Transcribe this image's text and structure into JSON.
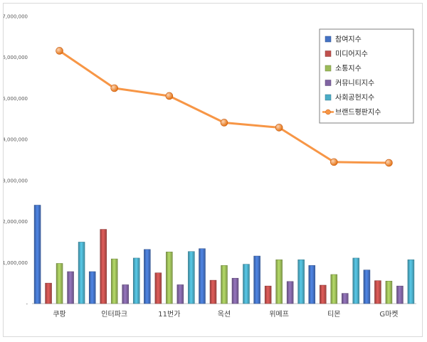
{
  "chart_data": {
    "type": "bar",
    "categories": [
      "쿠팡",
      "인터파크",
      "11번가",
      "옥션",
      "위메프",
      "티몬",
      "G마켓"
    ],
    "yticks": [
      "-",
      "1,000,000",
      "2,000,000",
      "3,000,000",
      "4,000,000",
      "5,000,000",
      "6,000,000",
      "7,000,000"
    ],
    "ylim": [
      0,
      7000000
    ],
    "grid": false,
    "legend_position": "top-right",
    "series": [
      {
        "name": "참여지수",
        "kind": "bar",
        "color": "#4472c4",
        "values": [
          2400000,
          780000,
          1320000,
          1340000,
          1160000,
          930000,
          820000
        ]
      },
      {
        "name": "미디어지수",
        "kind": "bar",
        "color": "#c0504d",
        "values": [
          500000,
          1810000,
          750000,
          570000,
          430000,
          450000,
          560000
        ]
      },
      {
        "name": "소통지수",
        "kind": "bar",
        "color": "#9bbb59",
        "values": [
          980000,
          1090000,
          1260000,
          930000,
          1070000,
          710000,
          550000
        ]
      },
      {
        "name": "커뮤니티지수",
        "kind": "bar",
        "color": "#8064a2",
        "values": [
          780000,
          460000,
          460000,
          620000,
          540000,
          250000,
          430000
        ]
      },
      {
        "name": "사회공헌지수",
        "kind": "bar",
        "color": "#4bacc6",
        "values": [
          1500000,
          1110000,
          1270000,
          960000,
          1070000,
          1110000,
          1070000
        ]
      },
      {
        "name": "브랜드평판지수",
        "kind": "line",
        "color": "#f79646",
        "values": [
          6160000,
          5250000,
          5060000,
          4410000,
          4290000,
          3450000,
          3430000
        ]
      }
    ]
  }
}
